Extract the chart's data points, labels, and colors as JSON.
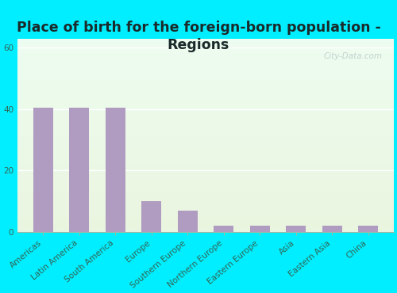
{
  "title": "Place of birth for the foreign-born population -\nRegions",
  "categories": [
    "Americas",
    "Latin America",
    "South America",
    "Europe",
    "Southern Europe",
    "Northern Europe",
    "Eastern Europe",
    "Asia",
    "Eastern Asia",
    "China"
  ],
  "values": [
    40.5,
    40.5,
    40.5,
    10.0,
    7.0,
    2.0,
    2.0,
    2.0,
    2.0,
    2.0
  ],
  "bar_color": "#b09cc0",
  "background_outer": "#00eeff",
  "plot_bg_top": "#edfcf0",
  "plot_bg_bottom": "#eaf5df",
  "yticks": [
    0,
    20,
    40,
    60
  ],
  "ylim": [
    0,
    63
  ],
  "title_fontsize": 12.5,
  "title_color": "#1a2a2a",
  "tick_fontsize": 7.5,
  "tick_color": "#336655",
  "watermark": "City-Data.com",
  "watermark_color": "#b8ccc8",
  "xlabel_rotation": 40
}
